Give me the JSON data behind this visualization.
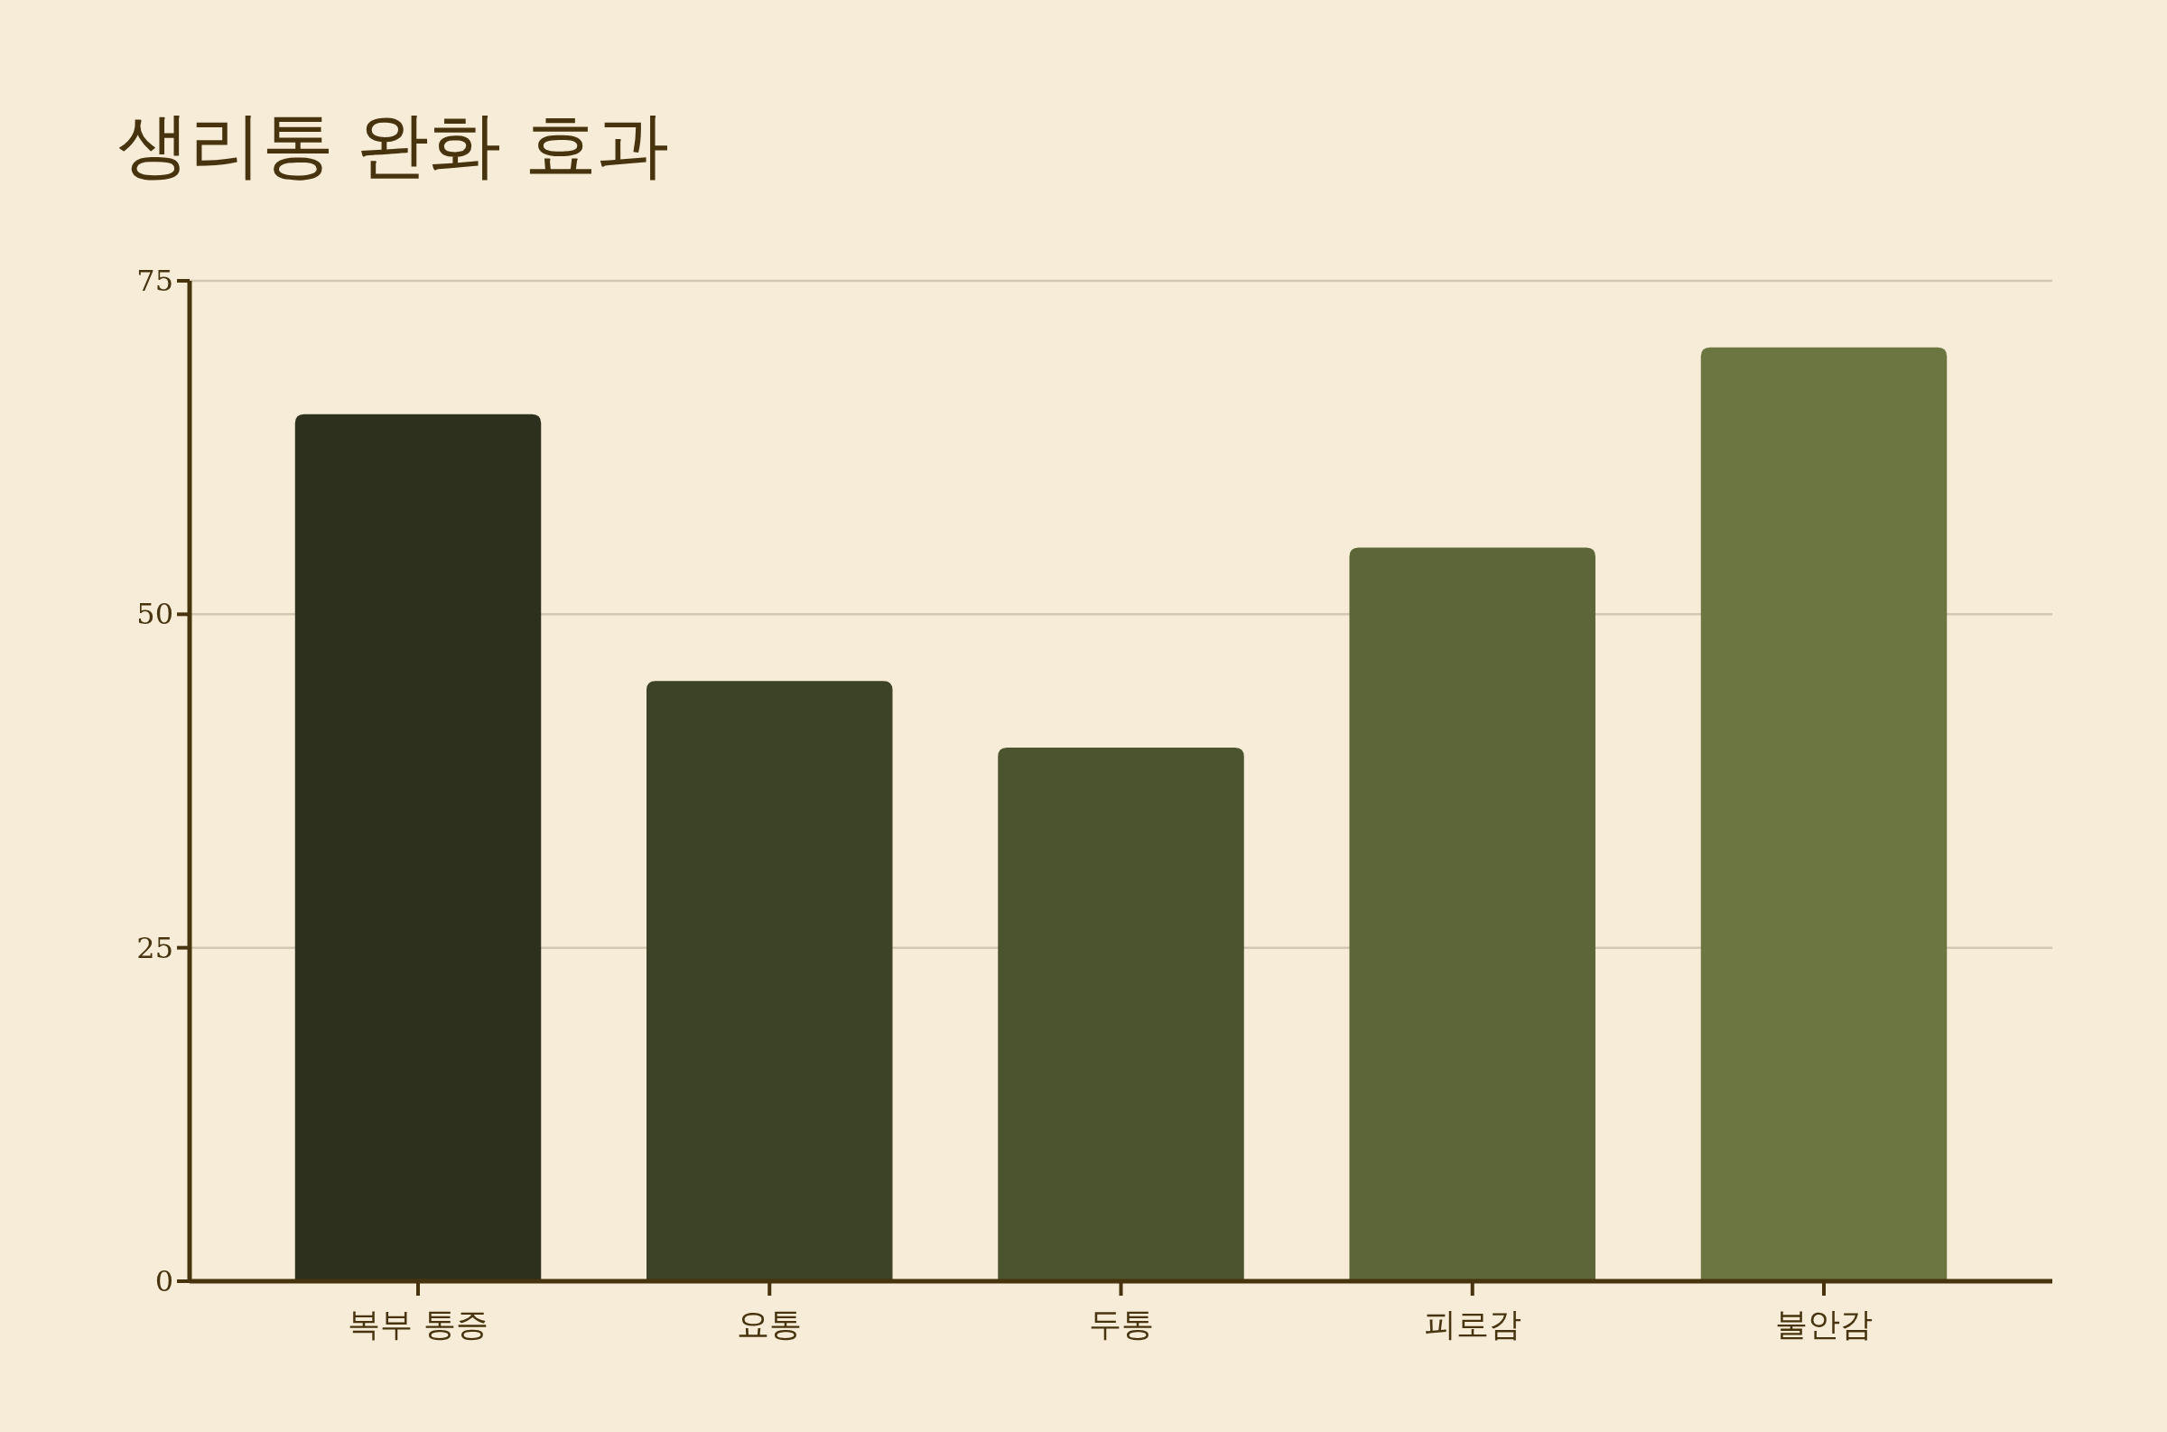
{
  "chart_data": {
    "type": "bar",
    "title": "생리통 완화 효과",
    "categories": [
      "복부 통증",
      "요통",
      "두통",
      "피로감",
      "불안감"
    ],
    "values": [
      65,
      45,
      40,
      55,
      70
    ],
    "colors": [
      "#2d301c",
      "#3c4327",
      "#4b542e",
      "#5c6639",
      "#6b7640"
    ],
    "ylim": [
      0,
      75
    ],
    "yticks": [
      0,
      25,
      50,
      75
    ],
    "grid": "y"
  }
}
